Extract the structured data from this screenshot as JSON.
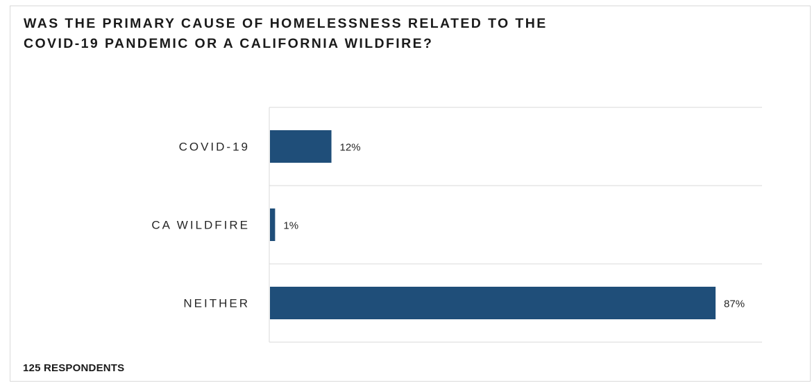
{
  "chart_data": {
    "type": "bar",
    "orientation": "horizontal",
    "title": "WAS THE PRIMARY CAUSE OF HOMELESSNESS RELATED TO THE\nCOVID-19 PANDEMIC OR A CALIFORNIA WILDFIRE?",
    "categories": [
      "COVID-19",
      "CA WILDFIRE",
      "NEITHER"
    ],
    "values": [
      12,
      1,
      87
    ],
    "value_labels": [
      "12%",
      "1%",
      "87%"
    ],
    "xlim": [
      0,
      100
    ],
    "bar_color": "#1f4e79",
    "grid": "horizontal category separators",
    "legend": "none"
  },
  "footnote": "125 RESPONDENTS"
}
